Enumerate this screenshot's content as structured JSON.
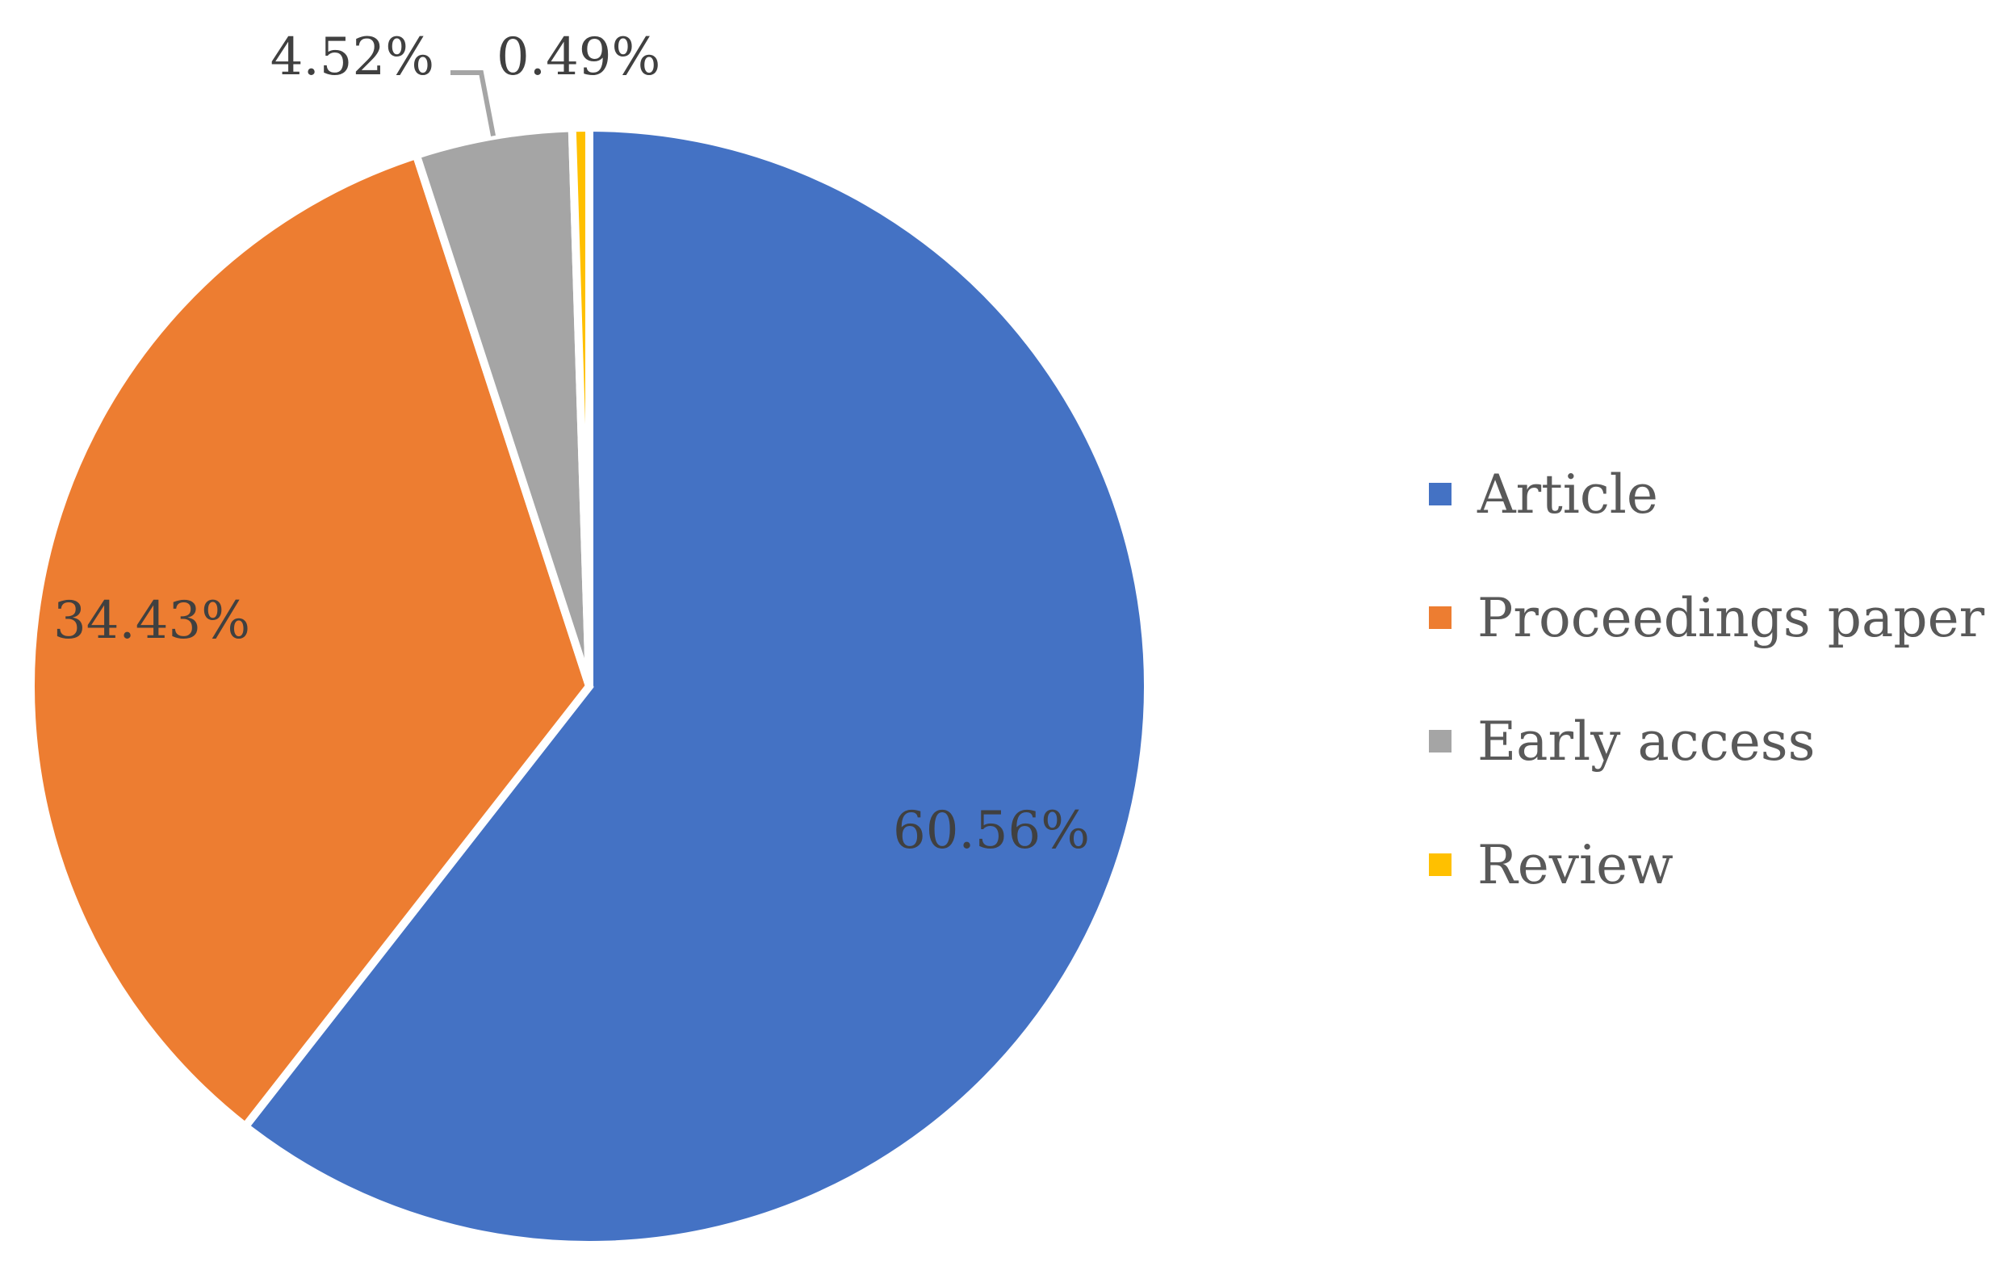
{
  "chart_data": {
    "type": "pie",
    "title": "",
    "categories": [
      "Article",
      "Proceedings paper",
      "Early access",
      "Review"
    ],
    "values": [
      60.56,
      34.43,
      4.52,
      0.49
    ],
    "value_labels": [
      "60.56%",
      "34.43%",
      "4.52%",
      "0.49%"
    ],
    "colors": [
      "#4472C4",
      "#ED7D31",
      "#A5A5A5",
      "#FFC000"
    ],
    "start_angle": "12 o'clock",
    "direction": "clockwise",
    "legend": {
      "position": "right",
      "entries": [
        "Article",
        "Proceedings paper",
        "Early access",
        "Review"
      ]
    }
  }
}
